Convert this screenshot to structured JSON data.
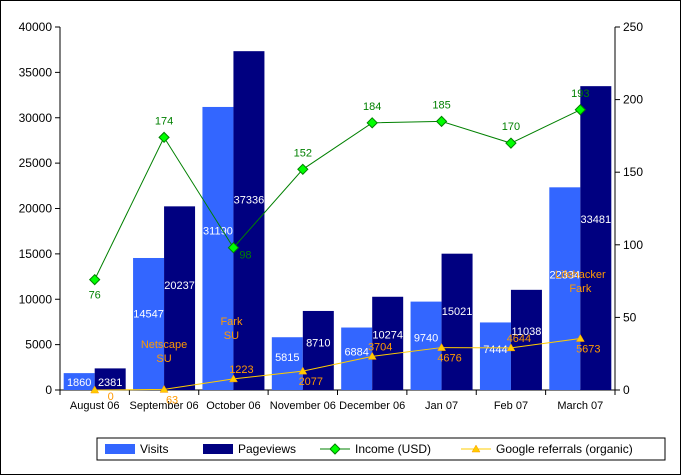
{
  "chart_data": {
    "type": "bar",
    "categories": [
      "August 06",
      "September 06",
      "October 06",
      "November 06",
      "December 06",
      "Jan 07",
      "Feb 07",
      "March 07"
    ],
    "series": [
      {
        "name": "Visits",
        "kind": "bar",
        "axis": "left",
        "color": "#3366ff",
        "label_color": "#ffffff",
        "values": [
          1860,
          14547,
          31190,
          5815,
          6884,
          9740,
          7444,
          22334
        ]
      },
      {
        "name": "Pageviews",
        "kind": "bar",
        "axis": "left",
        "color": "#000080",
        "label_color": "#ffffff",
        "values": [
          2381,
          20237,
          37336,
          8710,
          10274,
          15021,
          11038,
          33481
        ]
      },
      {
        "name": "Income (USD)",
        "kind": "line",
        "axis": "right",
        "color": "#008000",
        "marker": "diamond",
        "marker_color": "#00ff00",
        "label_color": "#008000",
        "values": [
          76,
          174,
          98,
          152,
          184,
          185,
          170,
          193
        ]
      },
      {
        "name": "Google referrals (organic)",
        "kind": "line",
        "axis": "left",
        "color": "#ffcc00",
        "marker": "triangle",
        "marker_color": "#ffcc00",
        "label_color": "#ff9900",
        "values": [
          0,
          63,
          1223,
          2077,
          3704,
          4676,
          4644,
          5673
        ]
      }
    ],
    "annotations": [
      {
        "category": "September 06",
        "lines": [
          "Netscape",
          "SU"
        ],
        "color": "#ff9900"
      },
      {
        "category": "October 06",
        "lines": [
          "Fark",
          "SU"
        ],
        "color": "#ff9900"
      },
      {
        "category": "March 07",
        "lines": [
          "Lifehacker",
          "Fark"
        ],
        "color": "#ff9900"
      }
    ],
    "y_left": {
      "min": 0,
      "max": 40000,
      "step": 5000
    },
    "y_right": {
      "min": 0,
      "max": 250,
      "step": 50
    },
    "grid": false,
    "legend_position": "bottom"
  }
}
